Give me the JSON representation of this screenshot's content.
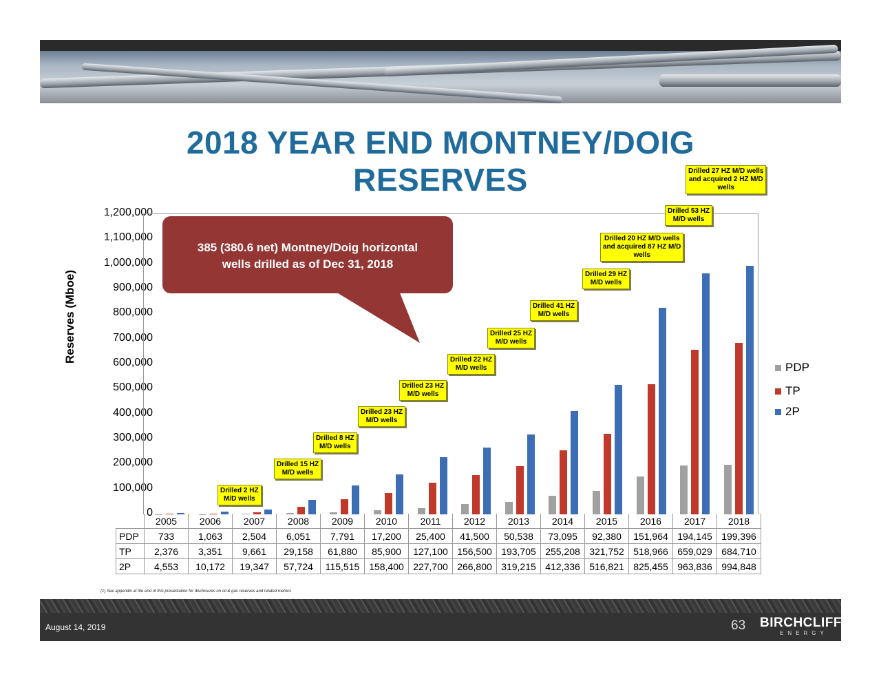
{
  "header": {
    "title_line1": "2018 YEAR END MONTNEY/DOIG",
    "title_line2": "RESERVES"
  },
  "callout": {
    "line1": "385 (380.6 net) Montney/Doig horizontal",
    "line2": "wells drilled as of Dec 31, 2018",
    "color": "#933634"
  },
  "annotations": [
    {
      "year": "2006",
      "line1": "Drilled 2 HZ",
      "line2": "M/D wells"
    },
    {
      "year": "2007",
      "line1": "Drilled 15 HZ",
      "line2": "M/D wells"
    },
    {
      "year": "2008",
      "line1": "Drilled 8 HZ",
      "line2": "M/D wells"
    },
    {
      "year": "2009",
      "line1": "Drilled 23 HZ",
      "line2": "M/D wells"
    },
    {
      "year": "2010",
      "line1": "Drilled 23 HZ",
      "line2": "M/D wells"
    },
    {
      "year": "2011",
      "line1": "Drilled 22 HZ",
      "line2": "M/D wells"
    },
    {
      "year": "2012",
      "line1": "Drilled 25 HZ",
      "line2": "M/D wells"
    },
    {
      "year": "2013",
      "line1": "Drilled 41 HZ",
      "line2": "M/D wells"
    },
    {
      "year": "2014",
      "line1": "Drilled 29 HZ",
      "line2": "M/D wells"
    },
    {
      "year": "2015",
      "line1": "Drilled 20 HZ M/D wells",
      "line2": "and acquired 87 HZ M/D",
      "line3": "wells"
    },
    {
      "year": "2016",
      "line1": "Drilled 53 HZ",
      "line2": "M/D wells"
    },
    {
      "year": "2017",
      "line1": "Drilled 27 HZ M/D wells",
      "line2": "and acquired 2 HZ M/D",
      "line3": "wells"
    }
  ],
  "footnote": "(1) See appendix at the end of this presentation for disclosures on oil & gas reserves and related metrics",
  "footer": {
    "date": "August 14, 2019",
    "page_number": "63",
    "brand": "BIRCHCLIFF",
    "brand_sub": "ENERGY"
  },
  "chart_data": {
    "type": "bar",
    "title": "2018 YEAR END MONTNEY/DOIG RESERVES",
    "xlabel": "",
    "ylabel": "Reserves (Mboe)",
    "ylim": [
      0,
      1200000
    ],
    "yticks": [
      "0",
      "100,000",
      "200,000",
      "300,000",
      "400,000",
      "500,000",
      "600,000",
      "700,000",
      "800,000",
      "900,000",
      "1,000,000",
      "1,100,000",
      "1,200,000"
    ],
    "grid": false,
    "legend_position": "right",
    "categories": [
      "2005",
      "2006",
      "2007",
      "2008",
      "2009",
      "2010",
      "2011",
      "2012",
      "2013",
      "2014",
      "2015",
      "2016",
      "2017",
      "2018"
    ],
    "series": [
      {
        "name": "PDP",
        "color": "#a0a0a0",
        "values": [
          733,
          1063,
          2504,
          6051,
          7791,
          17200,
          25400,
          41500,
          50538,
          73095,
          92380,
          151964,
          194145,
          199396
        ],
        "labels": [
          "733",
          "1,063",
          "2,504",
          "6,051",
          "7,791",
          "17,200",
          "25,400",
          "41,500",
          "50,538",
          "73,095",
          "92,380",
          "151,964",
          "194,145",
          "199,396"
        ]
      },
      {
        "name": "TP",
        "color": "#c0392b",
        "values": [
          2376,
          3351,
          9661,
          29158,
          61880,
          85900,
          127100,
          156500,
          193705,
          255208,
          321752,
          518966,
          659029,
          684710
        ],
        "labels": [
          "2,376",
          "3,351",
          "9,661",
          "29,158",
          "61,880",
          "85,900",
          "127,100",
          "156,500",
          "193,705",
          "255,208",
          "321,752",
          "518,966",
          "659,029",
          "684,710"
        ]
      },
      {
        "name": "2P",
        "color": "#3d6db5",
        "values": [
          4553,
          10172,
          19347,
          57724,
          115515,
          158400,
          227700,
          266800,
          319215,
          412336,
          516821,
          825455,
          963836,
          994848
        ],
        "labels": [
          "4,553",
          "10,172",
          "19,347",
          "57,724",
          "115,515",
          "158,400",
          "227,700",
          "266,800",
          "319,215",
          "412,336",
          "516,821",
          "825,455",
          "963,836",
          "994,848"
        ]
      }
    ]
  }
}
